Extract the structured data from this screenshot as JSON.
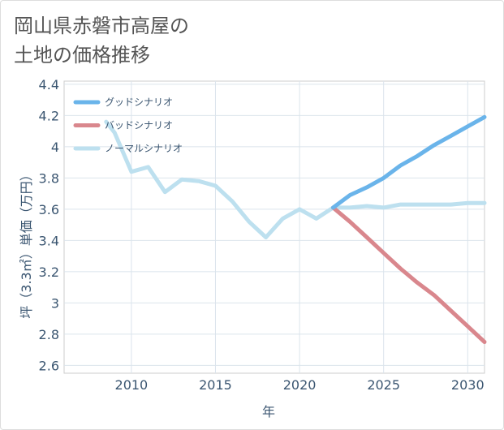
{
  "page": {
    "title": "岡山県赤磐市高屋の\n土地の価格推移"
  },
  "chart_data": {
    "type": "line",
    "title": "岡山県赤磐市高屋の土地の価格推移",
    "xlabel": "年",
    "ylabel": "坪（3.3㎡）単価（万円）",
    "xlim": [
      2006,
      2031
    ],
    "ylim": [
      2.55,
      4.42
    ],
    "xticks": [
      2010,
      2015,
      2020,
      2025,
      2030
    ],
    "yticks": [
      2.6,
      2.8,
      3,
      3.2,
      3.4,
      3.6,
      3.8,
      4,
      4.2,
      4.4
    ],
    "ytick_labels": [
      "2.6",
      "2.8",
      "3",
      "3.2",
      "3.4",
      "3.6",
      "3.8",
      "4",
      "4.2",
      "4.4"
    ],
    "legend_position": "top-left",
    "series": [
      {
        "name": "グッドシナリオ",
        "color": "#6ab4ea",
        "x": [
          2022,
          2023,
          2024,
          2025,
          2026,
          2027,
          2028,
          2029,
          2030,
          2031
        ],
        "values": [
          3.61,
          3.69,
          3.74,
          3.8,
          3.88,
          3.94,
          4.01,
          4.07,
          4.13,
          4.19
        ]
      },
      {
        "name": "バッドシナリオ",
        "color": "#d9878d",
        "x": [
          2022,
          2023,
          2024,
          2025,
          2026,
          2027,
          2028,
          2029,
          2030,
          2031
        ],
        "values": [
          3.61,
          3.52,
          3.42,
          3.32,
          3.22,
          3.13,
          3.05,
          2.95,
          2.85,
          2.75
        ]
      },
      {
        "name": "ノーマルシナリオ",
        "color": "#bde0ef",
        "x": [
          2008.5,
          2009,
          2010,
          2011,
          2012,
          2013,
          2014,
          2015,
          2016,
          2017,
          2018,
          2019,
          2020,
          2021,
          2022,
          2023,
          2024,
          2025,
          2026,
          2027,
          2028,
          2029,
          2030,
          2031
        ],
        "values": [
          4.16,
          4.09,
          3.84,
          3.87,
          3.71,
          3.79,
          3.78,
          3.75,
          3.65,
          3.52,
          3.42,
          3.54,
          3.6,
          3.54,
          3.61,
          3.61,
          3.62,
          3.61,
          3.63,
          3.63,
          3.63,
          3.63,
          3.64,
          3.64
        ]
      }
    ]
  }
}
